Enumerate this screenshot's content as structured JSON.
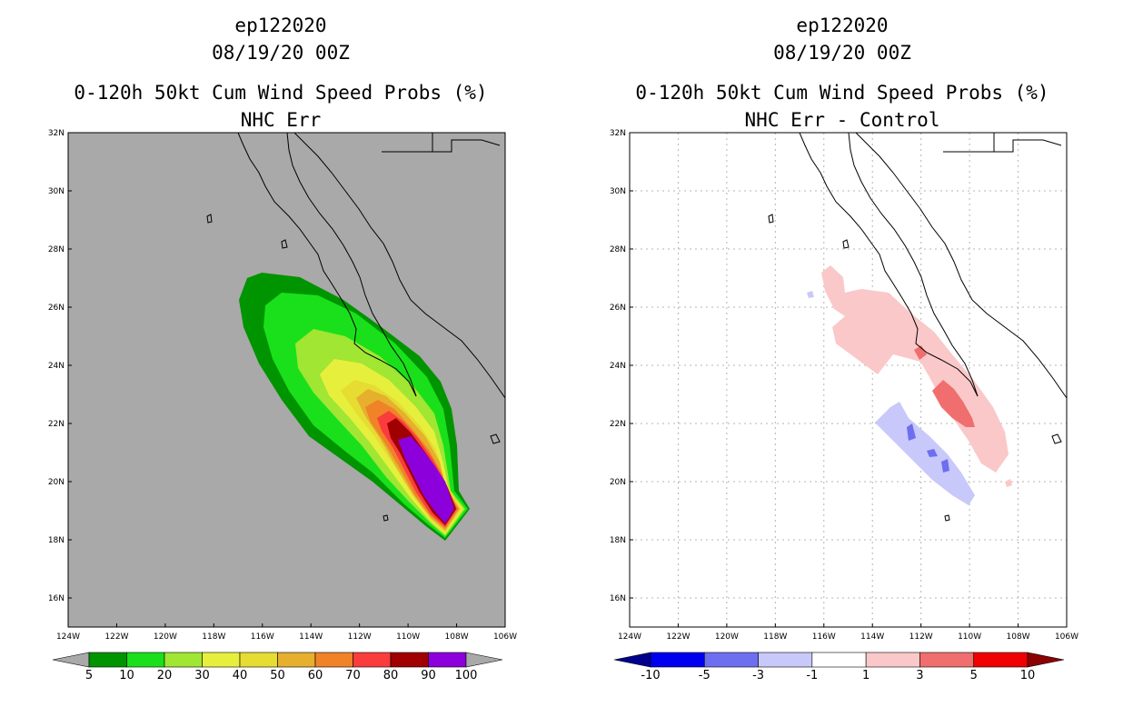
{
  "panels": [
    {
      "storm_id": "ep122020",
      "datetime": "08/19/20 00Z",
      "title": "0-120h 50kt Cum Wind Speed Probs (%)",
      "subtitle": "NHC Err",
      "colorbar": {
        "labels": [
          "5",
          "10",
          "20",
          "30",
          "40",
          "50",
          "60",
          "70",
          "80",
          "90",
          "100"
        ],
        "colors": [
          "#a9a9a9",
          "#009400",
          "#19e01a",
          "#a0e632",
          "#e6f03c",
          "#e6dc32",
          "#e6af2d",
          "#f08228",
          "#fa3c3c",
          "#a00000",
          "#8c00dc",
          "#a9a9a9"
        ]
      }
    },
    {
      "storm_id": "ep122020",
      "datetime": "08/19/20 00Z",
      "title": "0-120h 50kt Cum Wind Speed Probs (%)",
      "subtitle": "NHC Err - Control",
      "colorbar": {
        "labels": [
          "-10",
          "-5",
          "-3",
          "-1",
          "1",
          "3",
          "5",
          "10"
        ],
        "colors": [
          "#00008c",
          "#0000f0",
          "#6e6ef0",
          "#c8c8fa",
          "#ffffff",
          "#fac8c8",
          "#f06e6e",
          "#f00000",
          "#8c0000"
        ]
      }
    }
  ],
  "map": {
    "lat_labels": [
      "32N",
      "30N",
      "28N",
      "26N",
      "24N",
      "22N",
      "20N",
      "18N",
      "16N"
    ],
    "lon_labels": [
      "124W",
      "122W",
      "120W",
      "118W",
      "116W",
      "114W",
      "112W",
      "110W",
      "108W",
      "106W"
    ],
    "background_colors": {
      "left": "#a9a9a9",
      "right": "#ffffff"
    }
  }
}
